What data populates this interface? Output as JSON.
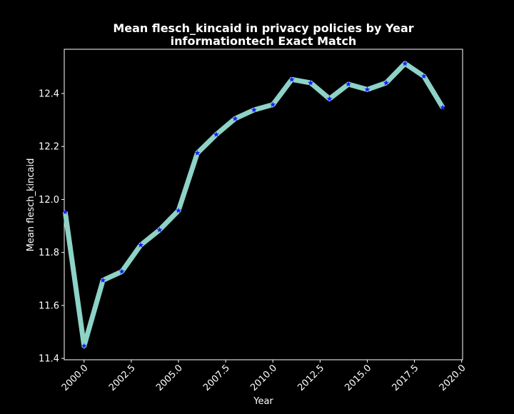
{
  "chart_data": {
    "type": "line",
    "title": "Mean flesch_kincaid in privacy policies by Year",
    "subtitle": "informationtech Exact Match",
    "xlabel": "Year",
    "ylabel": "Mean flesch_kincaid",
    "xlim": [
      1998.95,
      2020.05
    ],
    "ylim": [
      11.395,
      12.567
    ],
    "xticks": [
      2000.0,
      2002.5,
      2005.0,
      2007.5,
      2010.0,
      2012.5,
      2015.0,
      2017.5,
      2020.0
    ],
    "xtick_labels": [
      "2000.0",
      "2002.5",
      "2005.0",
      "2007.5",
      "2010.0",
      "2012.5",
      "2015.0",
      "2017.5",
      "2020.0"
    ],
    "yticks": [
      11.4,
      11.6,
      11.8,
      12.0,
      12.2,
      12.4
    ],
    "ytick_labels": [
      "11.4",
      "11.6",
      "11.8",
      "12.0",
      "12.2",
      "12.4"
    ],
    "grid": false,
    "x": [
      1999,
      2000,
      2001,
      2002,
      2003,
      2004,
      2005,
      2006,
      2007,
      2008,
      2009,
      2010,
      2011,
      2012,
      2013,
      2014,
      2015,
      2016,
      2017,
      2018,
      2019
    ],
    "series": [
      {
        "values": [
          11.953,
          11.447,
          11.695,
          11.728,
          11.828,
          11.885,
          11.958,
          12.175,
          12.245,
          12.305,
          12.338,
          12.358,
          12.453,
          12.44,
          12.38,
          12.435,
          12.415,
          12.44,
          12.513,
          12.465,
          12.347
        ],
        "line_color": "#8dd3c7",
        "marker_color": "#1a1aff",
        "marker": "star"
      }
    ]
  }
}
